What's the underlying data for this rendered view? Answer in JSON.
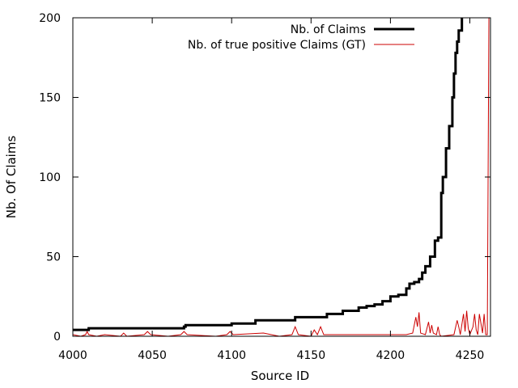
{
  "chart_data": {
    "type": "line",
    "title": "",
    "xlabel": "Source ID",
    "ylabel": "Nb. Of Claims",
    "xlim": [
      4000,
      4263
    ],
    "ylim": [
      0,
      200
    ],
    "xticks": [
      4000,
      4050,
      4100,
      4150,
      4200,
      4250
    ],
    "yticks": [
      0,
      50,
      100,
      150,
      200
    ],
    "grid": false,
    "legend_position": "top-right",
    "series": [
      {
        "name": "Nb. of Claims",
        "color": "#000000",
        "style": "thick-step",
        "x": [
          4000,
          4009,
          4010,
          4070,
          4071,
          4100,
          4115,
          4140,
          4160,
          4170,
          4180,
          4185,
          4190,
          4195,
          4200,
          4205,
          4210,
          4212,
          4215,
          4218,
          4220,
          4222,
          4225,
          4228,
          4230,
          4232,
          4233,
          4235,
          4237,
          4239,
          4240,
          4241,
          4242,
          4243,
          4245
        ],
        "y": [
          4,
          4,
          5,
          6,
          7,
          8,
          10,
          12,
          14,
          16,
          18,
          19,
          20,
          22,
          25,
          26,
          30,
          33,
          34,
          36,
          40,
          44,
          50,
          60,
          62,
          90,
          100,
          118,
          132,
          150,
          165,
          178,
          185,
          192,
          200
        ]
      },
      {
        "name": "Nb. of true positive Claims (GT)",
        "color": "#cc0000",
        "style": "thin-line",
        "x": [
          4000,
          4005,
          4008,
          4009,
          4010,
          4015,
          4020,
          4030,
          4032,
          4034,
          4045,
          4047,
          4049,
          4060,
          4068,
          4070,
          4072,
          4090,
          4097,
          4099,
          4101,
          4120,
          4130,
          4138,
          4140,
          4142,
          4150,
          4152,
          4154,
          4156,
          4158,
          4170,
          4190,
          4200,
          4210,
          4214,
          4216,
          4217,
          4218,
          4219,
          4222,
          4224,
          4225,
          4226,
          4227,
          4229,
          4230,
          4231,
          4232,
          4240,
          4242,
          4243,
          4244,
          4246,
          4247,
          4248,
          4249,
          4250,
          4252,
          4253,
          4254,
          4255,
          4256,
          4257,
          4258,
          4259,
          4260,
          4261,
          4262,
          4263
        ],
        "y": [
          1,
          0,
          1,
          3,
          1,
          0,
          1,
          0,
          2,
          0,
          1,
          3,
          1,
          0,
          1,
          3,
          1,
          0,
          1,
          3,
          1,
          2,
          0,
          1,
          6,
          1,
          0,
          4,
          1,
          6,
          1,
          1,
          1,
          1,
          1,
          2,
          12,
          6,
          15,
          2,
          1,
          9,
          2,
          7,
          2,
          1,
          6,
          1,
          0,
          1,
          10,
          6,
          1,
          14,
          3,
          16,
          5,
          1,
          6,
          14,
          4,
          1,
          14,
          8,
          2,
          14,
          1,
          1,
          200,
          200
        ]
      }
    ]
  }
}
